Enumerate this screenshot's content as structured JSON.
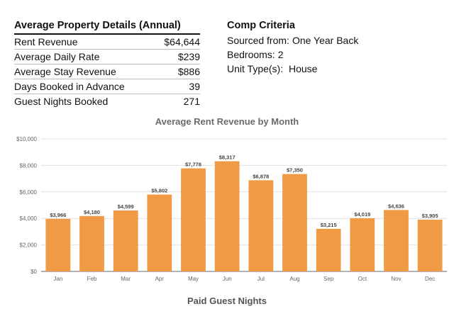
{
  "details": {
    "title": "Average Property Details (Annual)",
    "rows": [
      {
        "label": "Rent Revenue",
        "value": "$64,644"
      },
      {
        "label": "Average Daily Rate",
        "value": "$239"
      },
      {
        "label": "Average Stay Revenue",
        "value": "$886"
      },
      {
        "label": "Days Booked in Advance",
        "value": "39"
      },
      {
        "label": "Guest Nights Booked",
        "value": "271"
      }
    ]
  },
  "comp": {
    "title": "Comp Criteria",
    "sourced_label": "Sourced from:",
    "sourced_value": "One Year Back",
    "bedrooms_label": "Bedrooms:",
    "bedrooms_value": "2",
    "unit_label": "Unit Type(s):",
    "unit_value": "House"
  },
  "chart_data": {
    "type": "bar",
    "title": "Average Rent Revenue by Month",
    "categories": [
      "Jan",
      "Feb",
      "Mar",
      "Apr",
      "May",
      "Jun",
      "Jul",
      "Aug",
      "Sep",
      "Oct",
      "Nov",
      "Dec"
    ],
    "values": [
      3966,
      4180,
      4599,
      5802,
      7778,
      8317,
      6878,
      7350,
      3215,
      4019,
      4636,
      3905
    ],
    "value_labels": [
      "$3,966",
      "$4,180",
      "$4,599",
      "$5,802",
      "$7,778",
      "$8,317",
      "$6,878",
      "$7,350",
      "$3,215",
      "$4,019",
      "$4,636",
      "$3,905"
    ],
    "y_ticks": [
      0,
      2000,
      4000,
      6000,
      8000,
      10000
    ],
    "y_tick_labels": [
      "$0",
      "$2,000",
      "$4,000",
      "$6,000",
      "$8,000",
      "$10,000"
    ],
    "ylim": [
      0,
      10000
    ],
    "grid": true,
    "bar_color": "#f09a45"
  },
  "next_chart_title": "Paid Guest Nights"
}
